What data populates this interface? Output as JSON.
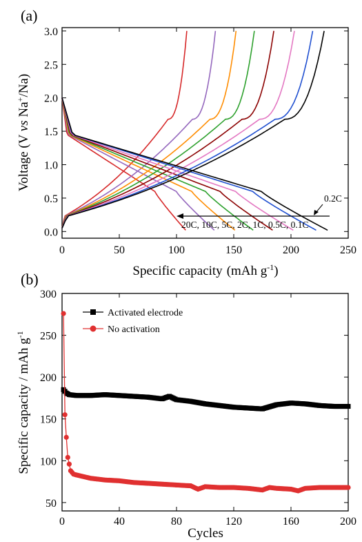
{
  "chart_data": [
    {
      "panel_label": "(a)",
      "type": "line",
      "xlabel": "Specific capacity",
      "xunit": "(mAh g",
      "xunit_sup": "-1",
      "xunit_end": ")",
      "ylabel": "Voltage (V ",
      "ylabel_vs": "vs",
      "ylabel_na": " Na",
      "ylabel_sup": "+",
      "ylabel_end": "/Na)",
      "xlim": [
        0,
        250
      ],
      "ylim": [
        -0.1,
        3.05
      ],
      "xticks": [
        "0",
        "50",
        "100",
        "150",
        "200",
        "250"
      ],
      "yticks": [
        "0.0",
        "0.5",
        "1.0",
        "1.5",
        "2.0",
        "2.5",
        "3.0"
      ],
      "rate_label_text": "20C,  10C,  5C, 2C, 1C, 0.5C, 0.1C",
      "annotation": "0.2C",
      "series": [
        {
          "rate": "20C",
          "color": "#d62728",
          "charge_capacity": 109,
          "discharge_capacity": 108
        },
        {
          "rate": "10C",
          "color": "#9467bd",
          "charge_capacity": 134,
          "discharge_capacity": 133
        },
        {
          "rate": "5C",
          "color": "#ff8c00",
          "charge_capacity": 152,
          "discharge_capacity": 151
        },
        {
          "rate": "2C",
          "color": "#2ca02c",
          "charge_capacity": 168,
          "discharge_capacity": 167
        },
        {
          "rate": "1C",
          "color": "#8b0000",
          "charge_capacity": 185,
          "discharge_capacity": 184
        },
        {
          "rate": "0.5C",
          "color": "#e377c2",
          "charge_capacity": 203,
          "discharge_capacity": 202
        },
        {
          "rate": "0.2C",
          "color": "#1f4fd0",
          "charge_capacity": 219,
          "discharge_capacity": 222
        },
        {
          "rate": "0.1C",
          "color": "#000000",
          "charge_capacity": 229,
          "discharge_capacity": 232
        }
      ]
    },
    {
      "panel_label": "(b)",
      "type": "scatter",
      "xlabel": "Cycles",
      "ylabel": "Specific capacity / mAh g",
      "ylabel_sup": "-1",
      "xlim": [
        0,
        200
      ],
      "ylim": [
        40,
        300
      ],
      "xticks": [
        "0",
        "40",
        "80",
        "120",
        "160",
        "200"
      ],
      "yticks": [
        "50",
        "100",
        "150",
        "200",
        "250",
        "300"
      ],
      "series": [
        {
          "name": "Activated electrode",
          "color": "#000000",
          "marker": "square",
          "x": [
            1,
            2,
            3,
            5,
            10,
            20,
            30,
            40,
            50,
            60,
            70,
            75,
            80,
            90,
            100,
            110,
            120,
            130,
            140,
            150,
            160,
            170,
            180,
            190,
            200
          ],
          "y": [
            185,
            183,
            181,
            179,
            178,
            178,
            179,
            178,
            177,
            176,
            174,
            177,
            173,
            171,
            168,
            166,
            164,
            163,
            162,
            167,
            169,
            168,
            166,
            165,
            165
          ]
        },
        {
          "name": "No activation",
          "color": "#e03030",
          "marker": "circle",
          "x": [
            1,
            2,
            3,
            4,
            5,
            6,
            8,
            10,
            15,
            20,
            30,
            40,
            50,
            60,
            70,
            80,
            90,
            95,
            100,
            110,
            120,
            130,
            140,
            145,
            150,
            160,
            165,
            170,
            180,
            190,
            200
          ],
          "y": [
            276,
            155,
            128,
            104,
            96,
            88,
            84,
            83,
            81,
            79,
            77,
            76,
            74,
            73,
            72,
            71,
            70,
            66,
            69,
            68,
            68,
            67,
            65,
            68,
            67,
            66,
            64,
            67,
            68,
            68,
            68
          ]
        }
      ]
    }
  ]
}
